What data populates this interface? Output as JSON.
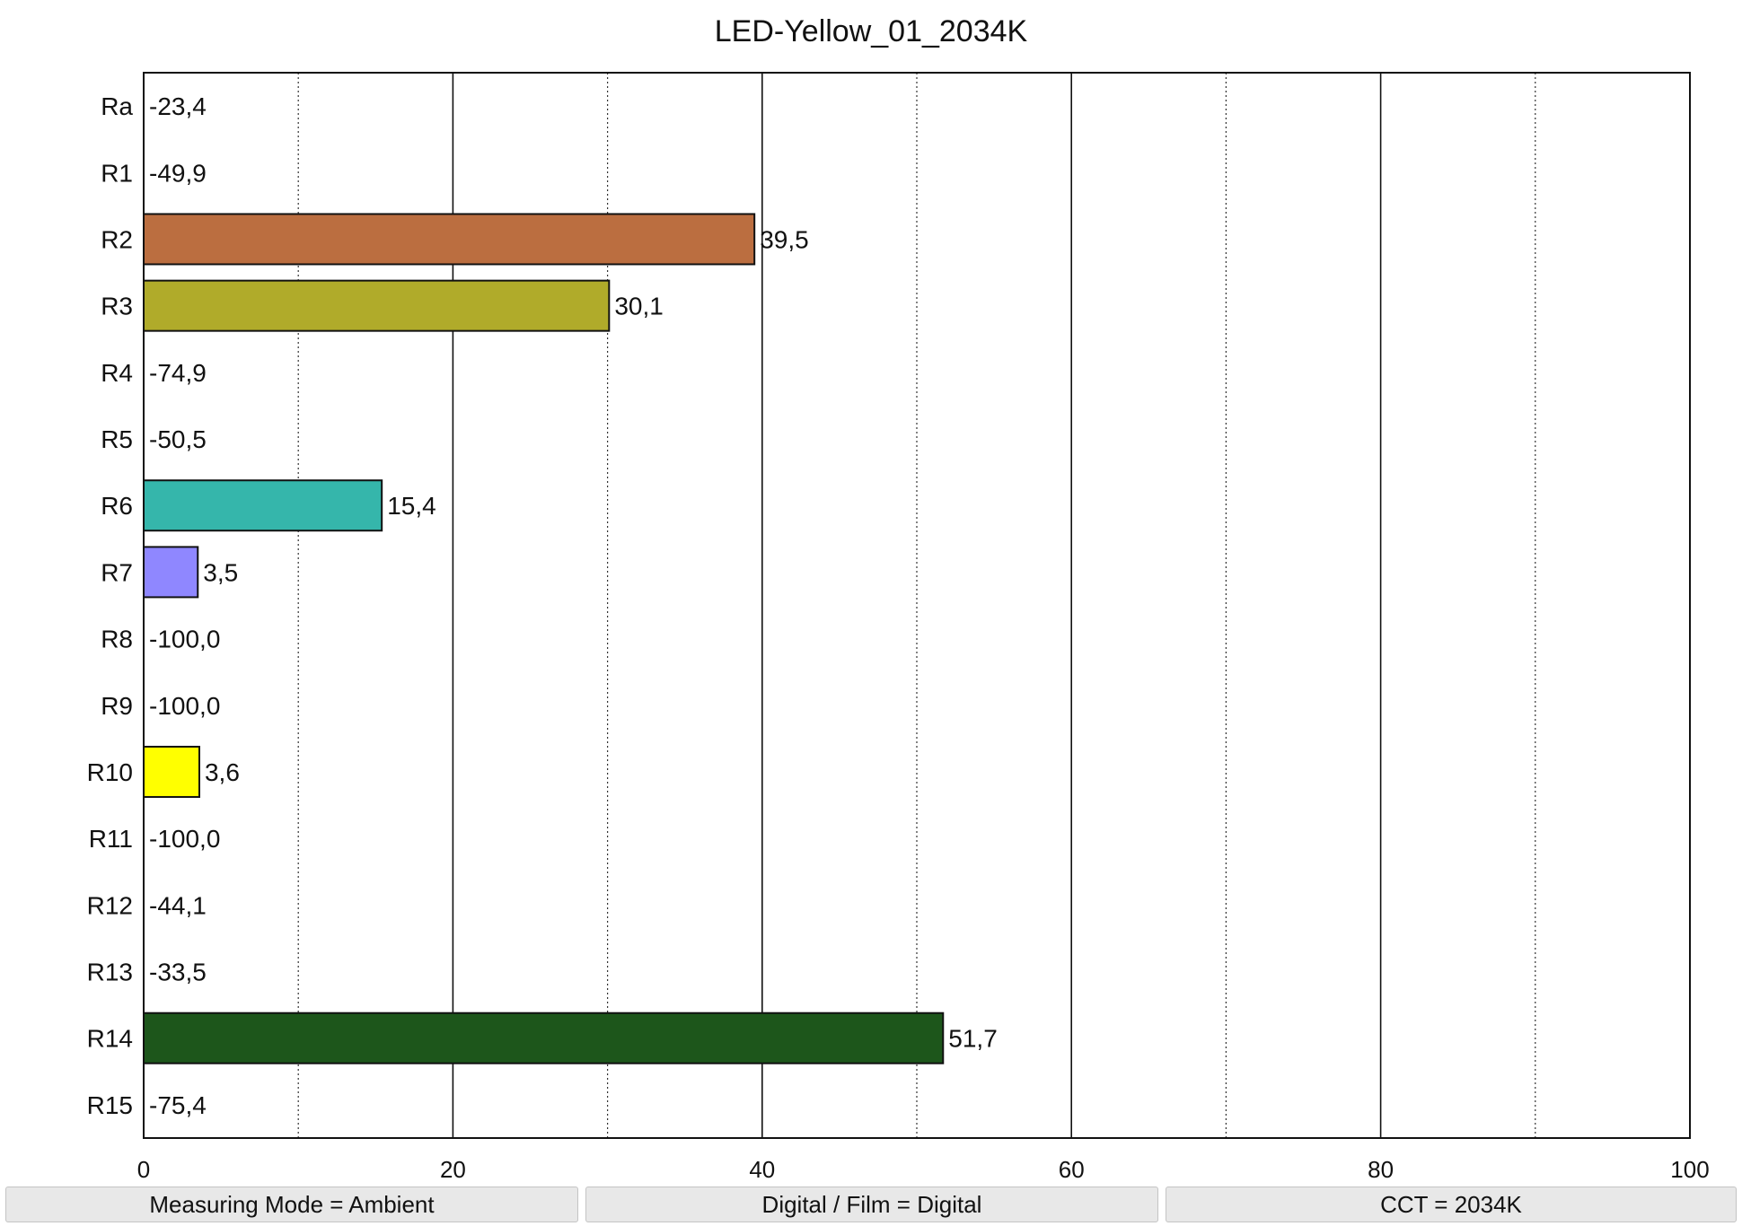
{
  "chart_data": {
    "type": "bar",
    "orientation": "horizontal",
    "title": "LED-Yellow_01_2034K",
    "xlabel": "",
    "ylabel": "",
    "xlim": [
      0,
      100
    ],
    "x_ticks": [
      0,
      20,
      40,
      60,
      80,
      100
    ],
    "x_tick_labels": [
      "0",
      "20",
      "40",
      "60",
      "80",
      "100"
    ],
    "grid": {
      "major": [
        20,
        40,
        60,
        80
      ],
      "minor_dotted": [
        10,
        30,
        50,
        70,
        90
      ]
    },
    "categories": [
      "Ra",
      "R1",
      "R2",
      "R3",
      "R4",
      "R5",
      "R6",
      "R7",
      "R8",
      "R9",
      "R10",
      "R11",
      "R12",
      "R13",
      "R14",
      "R15"
    ],
    "values": [
      -23.4,
      -49.9,
      39.5,
      30.1,
      -74.9,
      -50.5,
      15.4,
      3.5,
      -100.0,
      -100.0,
      3.6,
      -100.0,
      -44.1,
      -33.5,
      51.7,
      -75.4
    ],
    "value_labels": [
      "-23,4",
      "-49,9",
      "39,5",
      "30,1",
      "-74,9",
      "-50,5",
      "15,4",
      "3,5",
      "-100,0",
      "-100,0",
      "3,6",
      "-100,0",
      "-44,1",
      "-33,5",
      "51,7",
      "-75,4"
    ],
    "bar_colors": [
      "#c8c8c8",
      "#c8c8c8",
      "#bb6e40",
      "#b0ab2a",
      "#c8c8c8",
      "#c8c8c8",
      "#35b6ab",
      "#8f87ff",
      "#c8c8c8",
      "#c8c8c8",
      "#ffff00",
      "#c8c8c8",
      "#c8c8c8",
      "#c8c8c8",
      "#1d561b",
      "#c8c8c8"
    ]
  },
  "status_bar": {
    "measuring_mode": "Measuring Mode = Ambient",
    "digital_film": "Digital / Film = Digital",
    "cct": "CCT = 2034K"
  }
}
